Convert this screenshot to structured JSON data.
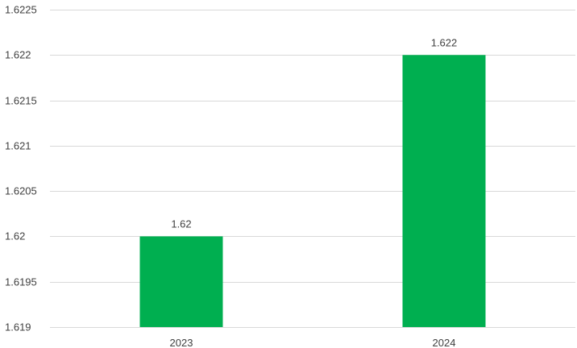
{
  "chart_data": {
    "type": "bar",
    "title": "",
    "xlabel": "",
    "ylabel": "",
    "categories": [
      "2023",
      "2024"
    ],
    "series": [
      {
        "values": [
          1.62,
          1.622
        ],
        "color": "#00AF50"
      }
    ],
    "data_labels": [
      "1.62",
      "1.622"
    ],
    "ylim": [
      1.619,
      1.6225
    ],
    "yticks": [
      1.619,
      1.6195,
      1.62,
      1.6205,
      1.621,
      1.6215,
      1.622,
      1.6225
    ],
    "ytick_labels": [
      "1.619",
      "1.6195",
      "1.62",
      "1.6205",
      "1.621",
      "1.6215",
      "1.622",
      "1.6225"
    ],
    "grid": true,
    "legend": "none",
    "colors": {
      "bar": "#00AF50",
      "grid": "#D9D9D9",
      "text": "#404040"
    }
  }
}
